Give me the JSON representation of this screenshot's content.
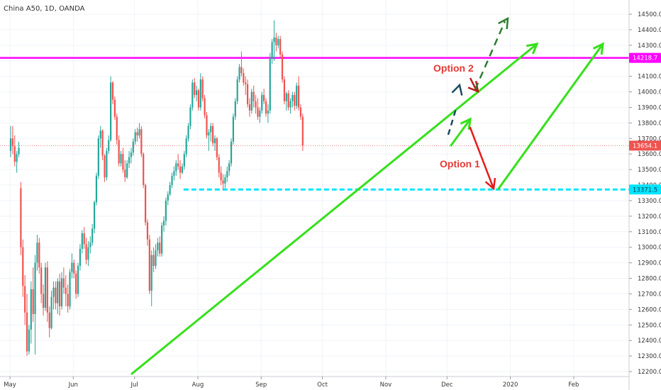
{
  "header": {
    "symbol": "China A50, 1D, OANDA"
  },
  "chart_data": {
    "type": "candlestick",
    "y_range": [
      12175,
      14585
    ],
    "y_ticks": [
      "14500.0",
      "14400.0",
      "14300.0",
      "14200.0",
      "14100.0",
      "14000.0",
      "13900.0",
      "13800.0",
      "13700.0",
      "13600.0",
      "13500.0",
      "13400.0",
      "13300.0",
      "13200.0",
      "13100.0",
      "13000.0",
      "12900.0",
      "12800.0",
      "12700.0",
      "12600.0",
      "12500.0",
      "12400.0",
      "12300.0",
      "12200.0"
    ],
    "x_ticks": [
      {
        "label": "May",
        "day": 0
      },
      {
        "label": "Jun",
        "day": 31
      },
      {
        "label": "Jul",
        "day": 61
      },
      {
        "label": "Aug",
        "day": 92
      },
      {
        "label": "Sep",
        "day": 123
      },
      {
        "label": "Oct",
        "day": 153
      },
      {
        "label": "Nov",
        "day": 184
      },
      {
        "label": "Dec",
        "day": 214
      },
      {
        "label": "2020",
        "day": 245
      },
      {
        "label": "Feb",
        "day": 276
      }
    ],
    "last_price": {
      "value": 13654.1,
      "label": "13654.1",
      "color": "#ef5350"
    },
    "horizontal_levels": [
      {
        "name": "magenta-resistance",
        "value": 14218.7,
        "label": "14218.7",
        "color": "#ff00ff",
        "style": "solid",
        "from_day": -5
      },
      {
        "name": "cyan-support",
        "value": 13371.5,
        "label": "13371.5",
        "color": "#00e5ff",
        "style": "dashed",
        "from_day": 85
      }
    ],
    "up_color": "#26a69a",
    "down_color": "#ef5350",
    "candles_ohlc": [
      [
        13620,
        13780,
        13580,
        13700
      ],
      [
        13700,
        13780,
        13600,
        13650
      ],
      [
        13650,
        13720,
        13520,
        13550
      ],
      [
        13550,
        13620,
        13480,
        13600
      ],
      [
        13600,
        13680,
        13580,
        13640
      ],
      [
        13380,
        13420,
        12950,
        13000
      ],
      [
        13000,
        13050,
        12680,
        12750
      ],
      [
        12750,
        12820,
        12500,
        12580
      ],
      [
        12580,
        12700,
        12300,
        12330
      ],
      [
        12330,
        12500,
        12310,
        12470
      ],
      [
        12470,
        12780,
        12380,
        12730
      ],
      [
        12730,
        12870,
        12520,
        12570
      ],
      [
        12570,
        12950,
        12310,
        12900
      ],
      [
        12900,
        13080,
        12850,
        13030
      ],
      [
        13030,
        13060,
        12830,
        12870
      ],
      [
        12870,
        12900,
        12640,
        12700
      ],
      [
        12700,
        12760,
        12560,
        12610
      ],
      [
        12610,
        12900,
        12590,
        12870
      ],
      [
        12870,
        12910,
        12520,
        12580
      ],
      [
        12580,
        12620,
        12420,
        12480
      ],
      [
        12480,
        12720,
        12470,
        12680
      ],
      [
        12680,
        12780,
        12600,
        12740
      ],
      [
        12740,
        12780,
        12600,
        12640
      ],
      [
        12640,
        12800,
        12570,
        12780
      ],
      [
        12780,
        12830,
        12560,
        12620
      ],
      [
        12620,
        12840,
        12600,
        12800
      ],
      [
        12800,
        12870,
        12700,
        12740
      ],
      [
        12740,
        12820,
        12620,
        12700
      ],
      [
        12700,
        12760,
        12580,
        12620
      ],
      [
        12620,
        12860,
        12600,
        12840
      ],
      [
        12840,
        12960,
        12800,
        12900
      ],
      [
        12900,
        12920,
        12800,
        12830
      ],
      [
        12830,
        12850,
        12670,
        12700
      ],
      [
        12700,
        12900,
        12680,
        12880
      ],
      [
        12880,
        13020,
        12850,
        12990
      ],
      [
        12990,
        13110,
        12960,
        13090
      ],
      [
        13090,
        13130,
        12990,
        13020
      ],
      [
        13020,
        13060,
        12890,
        12920
      ],
      [
        12920,
        13040,
        12880,
        13000
      ],
      [
        13000,
        13070,
        12960,
        13030
      ],
      [
        13030,
        13150,
        13010,
        13120
      ],
      [
        13120,
        13300,
        13090,
        13290
      ],
      [
        13290,
        13480,
        13270,
        13460
      ],
      [
        13460,
        13720,
        13440,
        13700
      ],
      [
        13700,
        13780,
        13640,
        13750
      ],
      [
        13750,
        13760,
        13560,
        13590
      ],
      [
        13590,
        13600,
        13420,
        13450
      ],
      [
        13450,
        13640,
        13430,
        13620
      ],
      [
        13620,
        13720,
        13600,
        13690
      ],
      [
        13690,
        14100,
        13680,
        14060
      ],
      [
        14060,
        14070,
        13920,
        13950
      ],
      [
        13950,
        13970,
        13820,
        13840
      ],
      [
        13840,
        13860,
        13660,
        13690
      ],
      [
        13690,
        13720,
        13520,
        13540
      ],
      [
        13540,
        13620,
        13520,
        13600
      ],
      [
        13600,
        13640,
        13480,
        13500
      ],
      [
        13500,
        13560,
        13420,
        13450
      ],
      [
        13450,
        13560,
        13440,
        13540
      ],
      [
        13540,
        13620,
        13510,
        13580
      ],
      [
        13580,
        13640,
        13540,
        13610
      ],
      [
        13610,
        13700,
        13590,
        13680
      ],
      [
        13680,
        13760,
        13660,
        13740
      ],
      [
        13740,
        13770,
        13680,
        13720
      ],
      [
        13720,
        13800,
        13700,
        13760
      ],
      [
        13760,
        13780,
        13580,
        13600
      ],
      [
        13600,
        13610,
        13380,
        13400
      ],
      [
        13400,
        13410,
        13140,
        13160
      ],
      [
        13160,
        13180,
        13010,
        13050
      ],
      [
        13050,
        13080,
        12700,
        12720
      ],
      [
        12720,
        12980,
        12620,
        12950
      ],
      [
        12950,
        13000,
        12840,
        12880
      ],
      [
        12880,
        13020,
        12860,
        12980
      ],
      [
        12980,
        13060,
        12940,
        13030
      ],
      [
        13030,
        13070,
        12940,
        12960
      ],
      [
        12960,
        13160,
        12940,
        13140
      ],
      [
        13140,
        13200,
        13100,
        13170
      ],
      [
        13170,
        13320,
        13140,
        13300
      ],
      [
        13300,
        13360,
        13270,
        13340
      ],
      [
        13340,
        13420,
        13330,
        13400
      ],
      [
        13400,
        13480,
        13380,
        13460
      ],
      [
        13460,
        13520,
        13430,
        13490
      ],
      [
        13490,
        13560,
        13460,
        13540
      ],
      [
        13540,
        13600,
        13500,
        13520
      ],
      [
        13520,
        13560,
        13440,
        13480
      ],
      [
        13480,
        13540,
        13470,
        13520
      ],
      [
        13520,
        13620,
        13500,
        13600
      ],
      [
        13600,
        13720,
        13580,
        13700
      ],
      [
        13700,
        13800,
        13680,
        13780
      ],
      [
        13780,
        13920,
        13760,
        13900
      ],
      [
        13900,
        14080,
        13880,
        14060
      ],
      [
        14060,
        14090,
        13960,
        13980
      ],
      [
        13980,
        14040,
        13940,
        14010
      ],
      [
        14010,
        14020,
        13880,
        13900
      ],
      [
        13900,
        14120,
        13880,
        14080
      ],
      [
        14080,
        14100,
        13940,
        13960
      ],
      [
        13960,
        13980,
        13830,
        13850
      ],
      [
        13850,
        13870,
        13700,
        13720
      ],
      [
        13720,
        13760,
        13620,
        13740
      ],
      [
        13740,
        13800,
        13680,
        13780
      ],
      [
        13780,
        13800,
        13650,
        13670
      ],
      [
        13670,
        13720,
        13620,
        13700
      ],
      [
        13700,
        13710,
        13560,
        13580
      ],
      [
        13580,
        13600,
        13450,
        13480
      ],
      [
        13480,
        13520,
        13400,
        13430
      ],
      [
        13430,
        13470,
        13370,
        13410
      ],
      [
        13410,
        13470,
        13380,
        13450
      ],
      [
        13450,
        13520,
        13420,
        13490
      ],
      [
        13490,
        13560,
        13460,
        13540
      ],
      [
        13540,
        13700,
        13520,
        13680
      ],
      [
        13680,
        13860,
        13660,
        13840
      ],
      [
        13840,
        13960,
        13820,
        13940
      ],
      [
        13940,
        14100,
        13920,
        14080
      ],
      [
        14080,
        14180,
        14060,
        14160
      ],
      [
        14160,
        14260,
        14100,
        14120
      ],
      [
        14120,
        14150,
        14040,
        14060
      ],
      [
        14060,
        14100,
        13980,
        14050
      ],
      [
        14050,
        14080,
        13900,
        13920
      ],
      [
        13920,
        13960,
        13840,
        13880
      ],
      [
        13880,
        14020,
        13860,
        14000
      ],
      [
        14000,
        14040,
        13900,
        13940
      ],
      [
        13940,
        13980,
        13860,
        13900
      ],
      [
        13900,
        13960,
        13820,
        13840
      ],
      [
        13840,
        13900,
        13800,
        13880
      ],
      [
        13880,
        14000,
        13860,
        13980
      ],
      [
        13980,
        14020,
        13920,
        13940
      ],
      [
        13940,
        13960,
        13840,
        13860
      ],
      [
        13860,
        13920,
        13800,
        13880
      ],
      [
        13880,
        14250,
        13860,
        14220
      ],
      [
        14220,
        14340,
        14180,
        14320
      ],
      [
        14320,
        14460,
        14200,
        14350
      ],
      [
        14350,
        14380,
        14260,
        14300
      ],
      [
        14300,
        14360,
        14280,
        14340
      ],
      [
        14340,
        14360,
        14220,
        14240
      ],
      [
        14240,
        14260,
        14060,
        14080
      ],
      [
        14080,
        14100,
        13920,
        13940
      ],
      [
        13940,
        14000,
        13880,
        13990
      ],
      [
        13990,
        14010,
        13880,
        13900
      ],
      [
        13900,
        13960,
        13860,
        13940
      ],
      [
        13940,
        14000,
        13900,
        13980
      ],
      [
        13980,
        14000,
        13880,
        13910
      ],
      [
        13910,
        14060,
        13890,
        14040
      ],
      [
        14040,
        14100,
        13880,
        13900
      ],
      [
        13900,
        13920,
        13820,
        13840
      ],
      [
        13840,
        13860,
        13620,
        13654.1
      ]
    ]
  },
  "annotations": {
    "option1": "Option 1",
    "option2": "Option 2",
    "trendline_color": "#35e01a",
    "option1_arrow_color": "#e51c1c",
    "option2_dashed_colors": [
      "#1b4a5e",
      "#b71c1c",
      "#2e7d32"
    ]
  }
}
